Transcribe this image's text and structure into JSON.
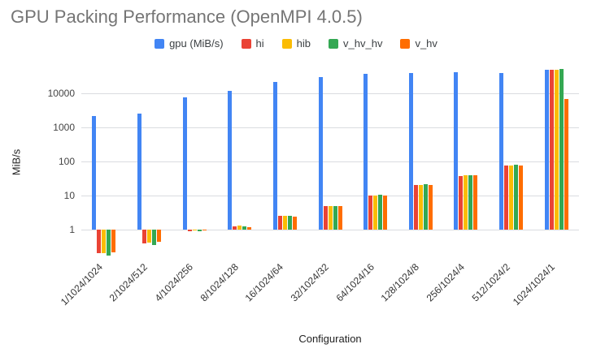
{
  "title": "GPU Packing Performance (OpenMPI 4.0.5)",
  "chart_data": {
    "type": "bar",
    "title": "GPU Packing Performance (OpenMPI 4.0.5)",
    "xlabel": "Configuration",
    "ylabel": "MiB/s",
    "y_scale": "log",
    "y_baseline": 1,
    "yticks": [
      1,
      10,
      100,
      1000,
      10000
    ],
    "ylim": [
      0.15,
      60000
    ],
    "grid": true,
    "legend_position": "top",
    "categories": [
      "1/1024/1024",
      "2/1024/512",
      "4/1024/256",
      "8/1024/128",
      "16/1024/64",
      "32/1024/32",
      "64/1024/16",
      "128/1024/8",
      "256/1024/4",
      "512/1024/2",
      "1024/1024/1"
    ],
    "series": [
      {
        "name": "gpu (MiB/s)",
        "color": "#4285F4",
        "values": [
          2100,
          2500,
          7500,
          12000,
          21000,
          30000,
          38000,
          40000,
          42000,
          40000,
          48000
        ]
      },
      {
        "name": "hi",
        "color": "#EA4335",
        "values": [
          0.2,
          0.4,
          0.9,
          1.25,
          2.5,
          5,
          10,
          20,
          38,
          75,
          48000
        ]
      },
      {
        "name": "hib",
        "color": "#FBBC04",
        "values": [
          0.2,
          0.42,
          0.95,
          1.3,
          2.6,
          5,
          10,
          20,
          40,
          78,
          50000
        ]
      },
      {
        "name": "v_hv_hv",
        "color": "#34A853",
        "values": [
          0.17,
          0.35,
          0.9,
          1.25,
          2.5,
          5,
          10.5,
          21,
          40,
          80,
          55000
        ]
      },
      {
        "name": "v_hv",
        "color": "#FF6D00",
        "values": [
          0.22,
          0.45,
          0.95,
          1.2,
          2.4,
          4.8,
          10,
          20,
          40,
          78,
          7000
        ]
      }
    ]
  },
  "colors": {
    "grid": "#dadce0",
    "title_text": "#757575",
    "axis_text": "#444444"
  }
}
